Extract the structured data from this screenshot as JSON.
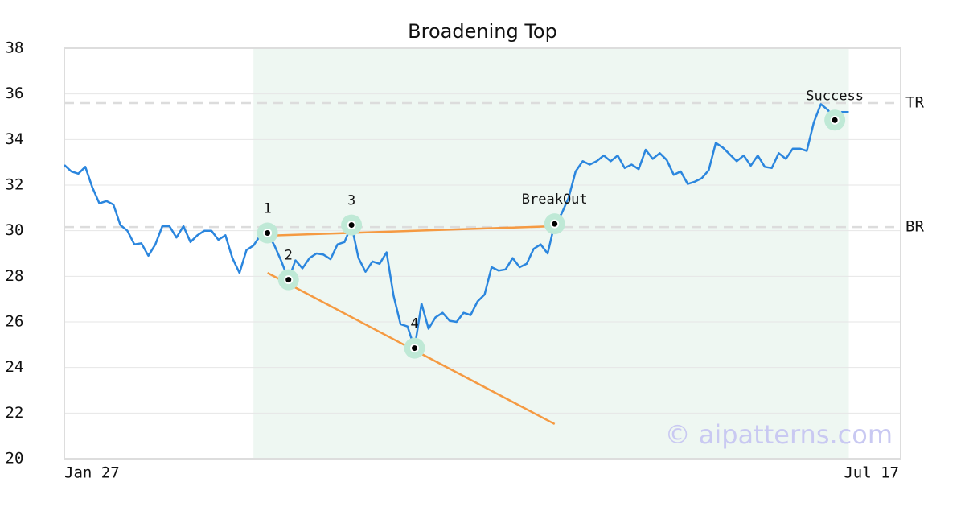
{
  "chart_data": {
    "type": "line",
    "title": "Broadening Top",
    "categories": [
      "Jan 27",
      null,
      null,
      null,
      null,
      null,
      null,
      null,
      null,
      null,
      null,
      null,
      null,
      null,
      null,
      null,
      null,
      null,
      null,
      null,
      null,
      null,
      null,
      null,
      null,
      null,
      null,
      null,
      null,
      null,
      null,
      null,
      null,
      null,
      null,
      null,
      null,
      null,
      null,
      null,
      null,
      null,
      null,
      null,
      null,
      null,
      null,
      null,
      null,
      null,
      null,
      null,
      null,
      null,
      null,
      null,
      null,
      null,
      null,
      null,
      null,
      null,
      null,
      null,
      null,
      null,
      null,
      null,
      null,
      null,
      null,
      null,
      null,
      null,
      null,
      null,
      null,
      null,
      null,
      null,
      null,
      null,
      null,
      null,
      null,
      null,
      null,
      null,
      null,
      null,
      null,
      null,
      null,
      null,
      null,
      null,
      null,
      null,
      null,
      null,
      null,
      null,
      null,
      null,
      null,
      null,
      null,
      null,
      null,
      null,
      null,
      null,
      "Jul 17"
    ],
    "values": [
      32.88,
      32.6,
      32.5,
      32.8,
      31.9,
      31.2,
      31.3,
      31.15,
      30.25,
      30.0,
      29.4,
      29.45,
      28.9,
      29.4,
      30.2,
      30.2,
      29.7,
      30.2,
      29.5,
      29.8,
      30.0,
      30.0,
      29.6,
      29.8,
      28.8,
      28.15,
      29.15,
      29.35,
      29.8,
      29.9,
      29.35,
      28.65,
      27.85,
      28.7,
      28.35,
      28.8,
      29.0,
      28.95,
      28.75,
      29.4,
      29.5,
      30.25,
      28.8,
      28.2,
      28.65,
      28.55,
      29.05,
      27.15,
      25.9,
      25.8,
      24.85,
      26.8,
      25.7,
      26.2,
      26.4,
      26.05,
      26.0,
      26.4,
      26.3,
      26.9,
      27.2,
      28.4,
      28.25,
      28.3,
      28.8,
      28.4,
      28.55,
      29.2,
      29.4,
      29.0,
      30.3,
      30.75,
      31.45,
      32.6,
      33.05,
      32.9,
      33.05,
      33.3,
      33.05,
      33.3,
      32.75,
      32.9,
      32.7,
      33.55,
      33.15,
      33.4,
      33.1,
      32.45,
      32.6,
      32.05,
      32.15,
      32.3,
      32.65,
      33.85,
      33.65,
      33.35,
      33.05,
      33.3,
      32.85,
      33.3,
      32.8,
      32.75,
      33.4,
      33.15,
      33.6,
      33.6,
      33.5,
      34.75,
      35.55,
      35.3,
      34.85,
      35.2,
      35.2
    ],
    "color": "#2b86de",
    "xlim": [
      0,
      119.4
    ],
    "ylim": [
      20,
      38
    ],
    "yticks": [
      20,
      22,
      24,
      26,
      28,
      30,
      32,
      34,
      36,
      38
    ],
    "grid": true,
    "shade": {
      "x": [
        27,
        112
      ],
      "color": "#eef7f2"
    },
    "trend_lines": [
      {
        "x": [
          29,
          70
        ],
        "y": [
          29.78,
          30.2
        ],
        "color": "#f59a42"
      },
      {
        "x": [
          29,
          70
        ],
        "y": [
          28.15,
          21.52
        ],
        "color": "#f59a42"
      }
    ],
    "levels": [
      {
        "label": "TR",
        "value": 35.6
      },
      {
        "label": "BR",
        "value": 30.16
      }
    ],
    "points": [
      {
        "label": "1",
        "x": 29,
        "y": 29.9
      },
      {
        "label": "2",
        "x": 32,
        "y": 27.85
      },
      {
        "label": "3",
        "x": 41,
        "y": 30.25
      },
      {
        "label": "4",
        "x": 50,
        "y": 24.85
      },
      {
        "label": "BreakOut",
        "x": 70,
        "y": 30.3
      },
      {
        "label": "Success",
        "x": 110,
        "y": 34.85
      }
    ],
    "watermark": "© aipatterns.com"
  }
}
